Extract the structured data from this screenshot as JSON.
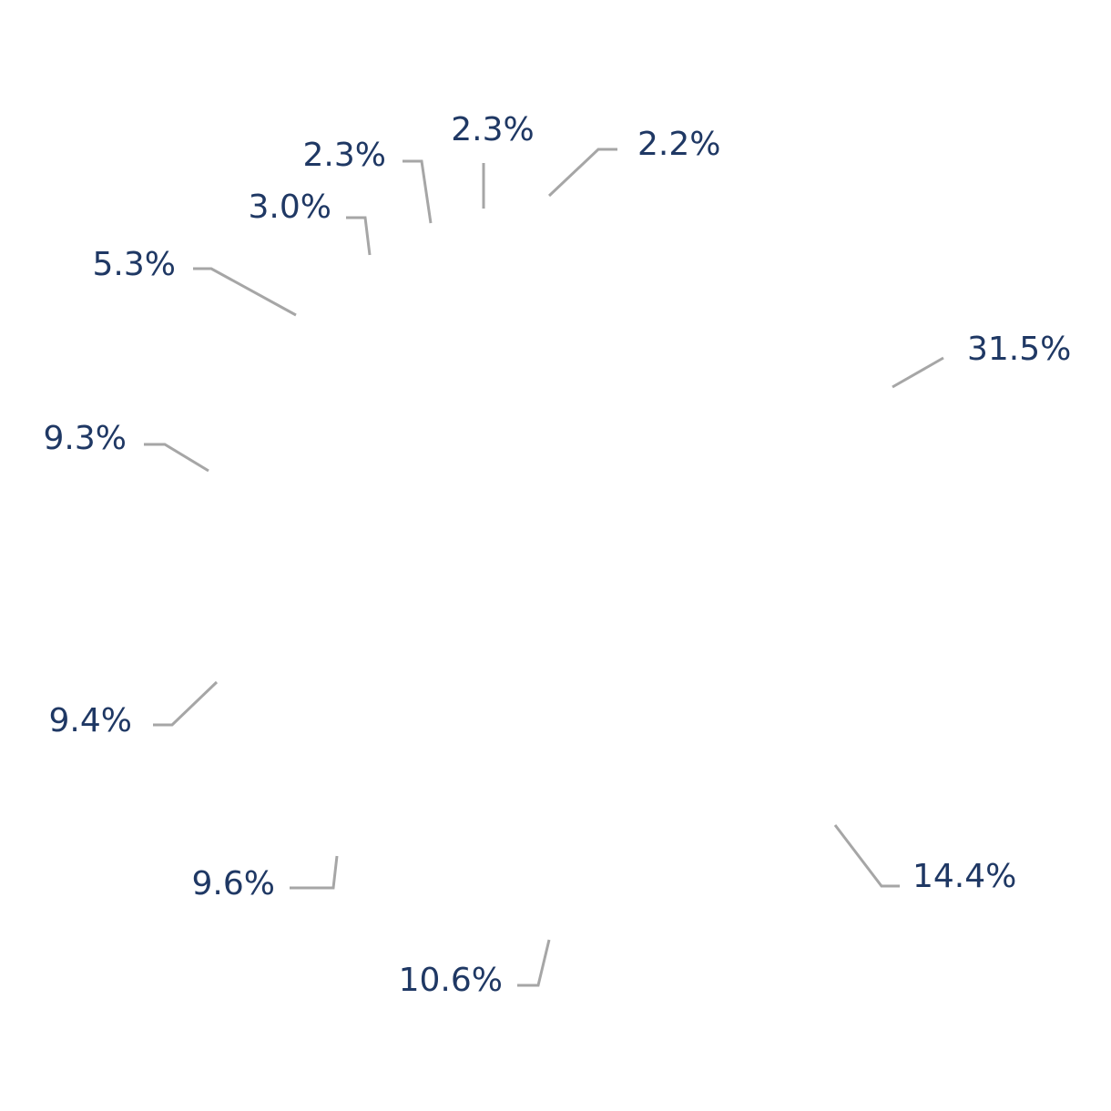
{
  "chart_data": {
    "type": "pie",
    "start_angle_deg": 0,
    "direction": "clockwise",
    "values": [
      31.5,
      14.4,
      10.6,
      9.6,
      9.4,
      9.3,
      5.3,
      3.0,
      2.3,
      2.3,
      2.2
    ],
    "labels": [
      "31.5%",
      "14.4%",
      "10.6%",
      "9.6%",
      "9.4%",
      "9.3%",
      "5.3%",
      "3.0%",
      "2.3%",
      "2.3%",
      "2.2%"
    ],
    "colors": {
      "slice": "#ffffff",
      "label": "#1f3864",
      "leader": "#a6a6a6"
    }
  }
}
